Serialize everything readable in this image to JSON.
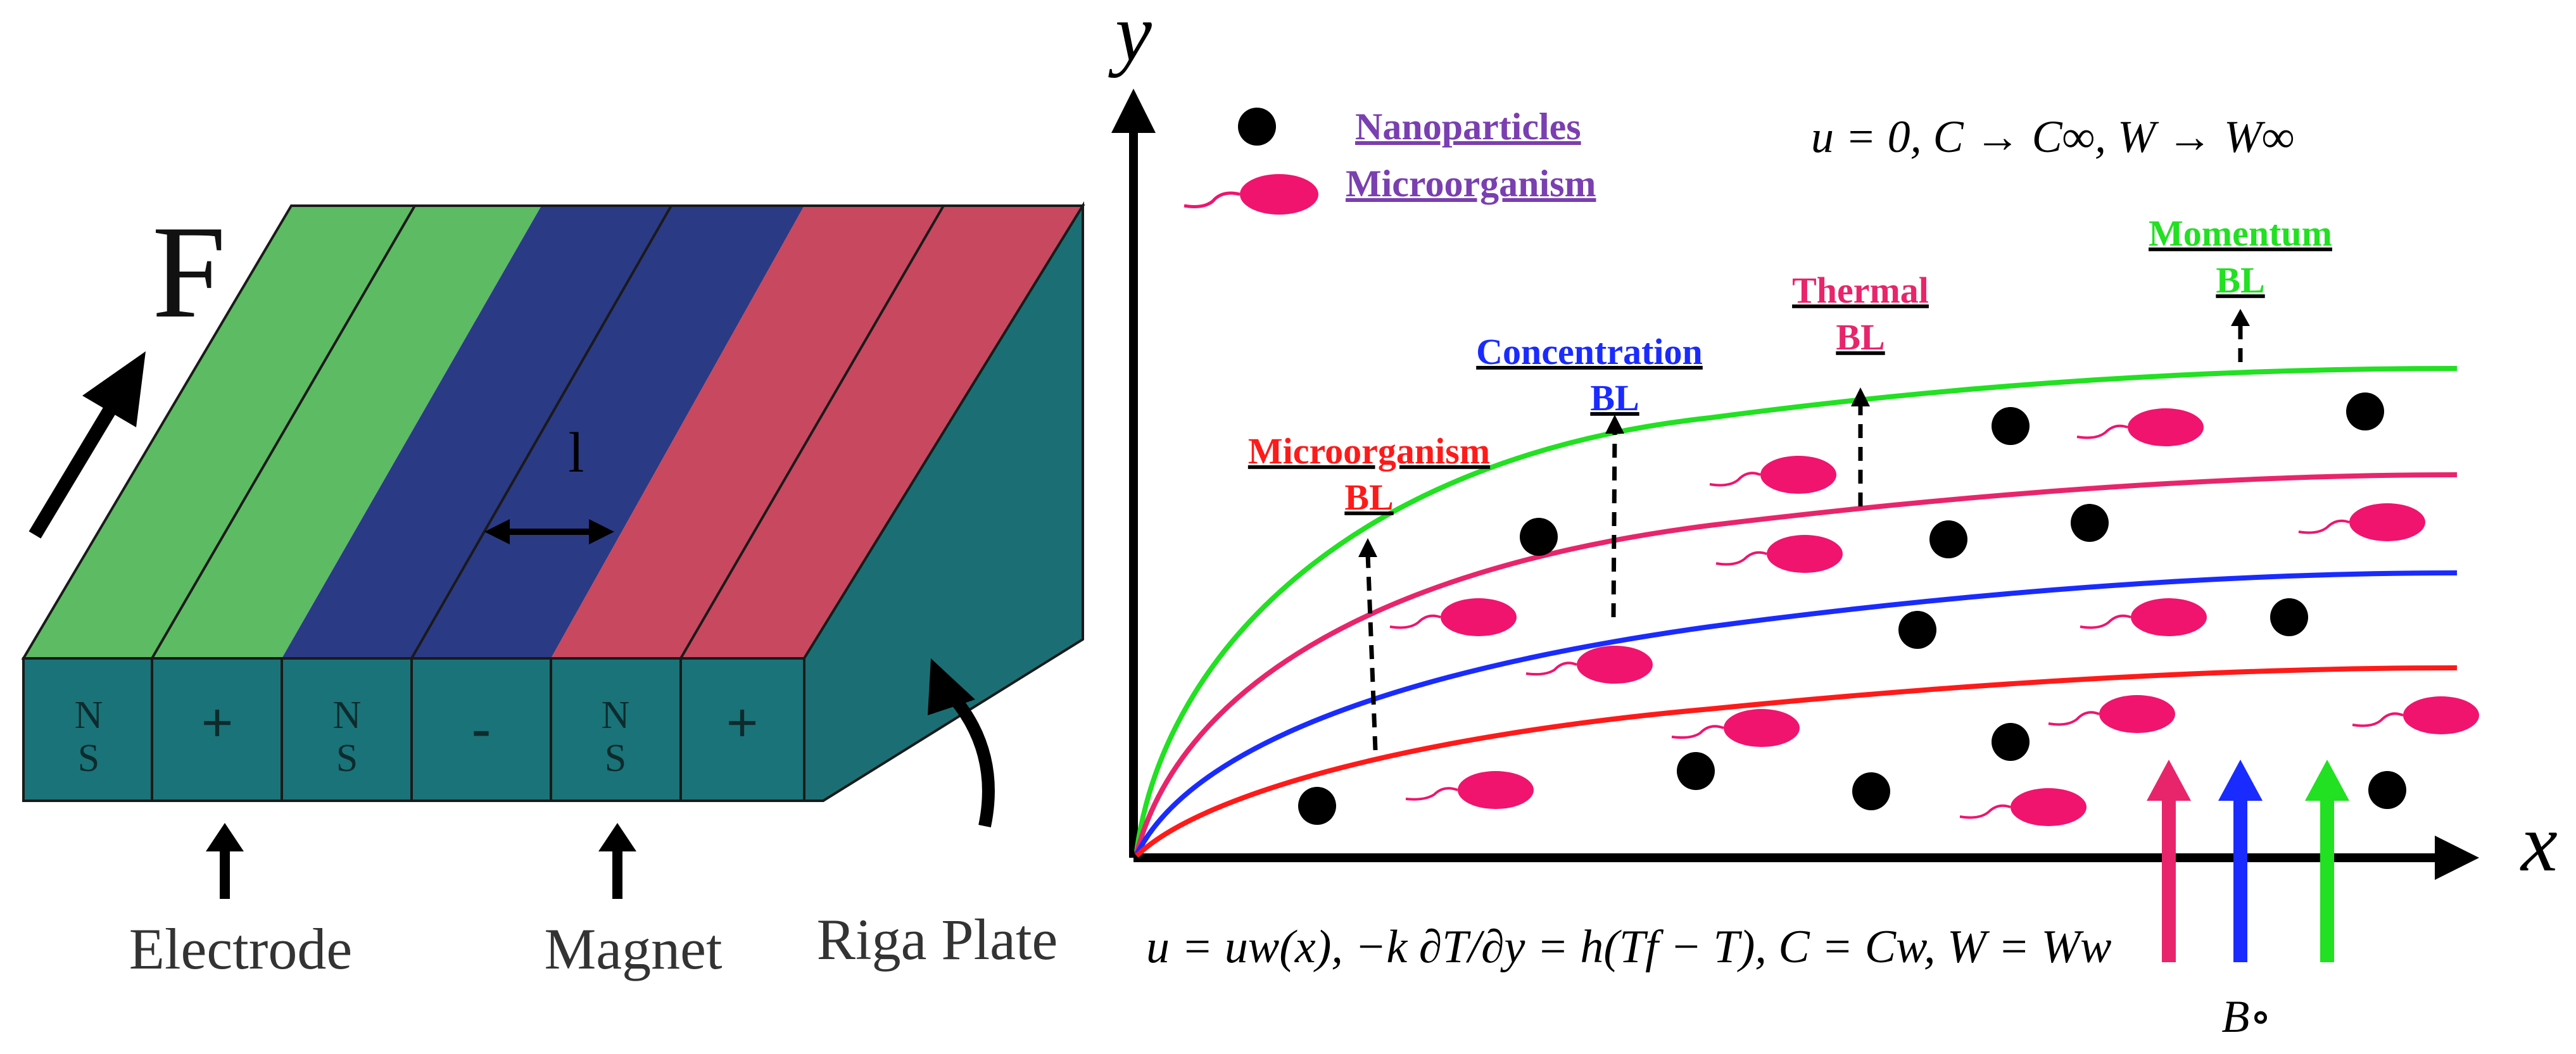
{
  "riga": {
    "force_label": "F",
    "face_labels": [
      "N\nS",
      "+",
      "N\nS",
      "-",
      "N\nS",
      "+"
    ],
    "bar_symbol": "l",
    "labels": {
      "electrode": "Electrode",
      "magnet": "Magnet",
      "plate": "Riga Plate"
    },
    "colors": {
      "green": "#5dbb63",
      "blue": "#2b3a85",
      "red": "#c8485f",
      "side": "#176f74"
    }
  },
  "flow": {
    "axis_x": "x",
    "axis_y": "y",
    "legend": {
      "nanoparticles": "Nanoparticles",
      "microorganism": "Microorganism"
    },
    "far_bc": "u = 0, C → C∞, W → W∞",
    "wall_bc": "u = uw(x), −k ∂T/∂y = h(Tf − T), C = Cw, W = Ww",
    "field": "B∘",
    "boundary_layers": {
      "momentum": [
        "Momentum",
        "BL"
      ],
      "thermal": [
        "Thermal",
        "BL"
      ],
      "concentration": [
        "Concentration",
        "BL"
      ],
      "microorganism": [
        "Microorganism",
        "BL"
      ]
    },
    "colors": {
      "momentum": "#22e022",
      "thermal": "#e8256b",
      "concentration": "#1a2bff",
      "microorganism": "#ff1a1a",
      "legend": "#7a3fb0",
      "particle": "#000000",
      "organism": "#f0146e"
    }
  }
}
